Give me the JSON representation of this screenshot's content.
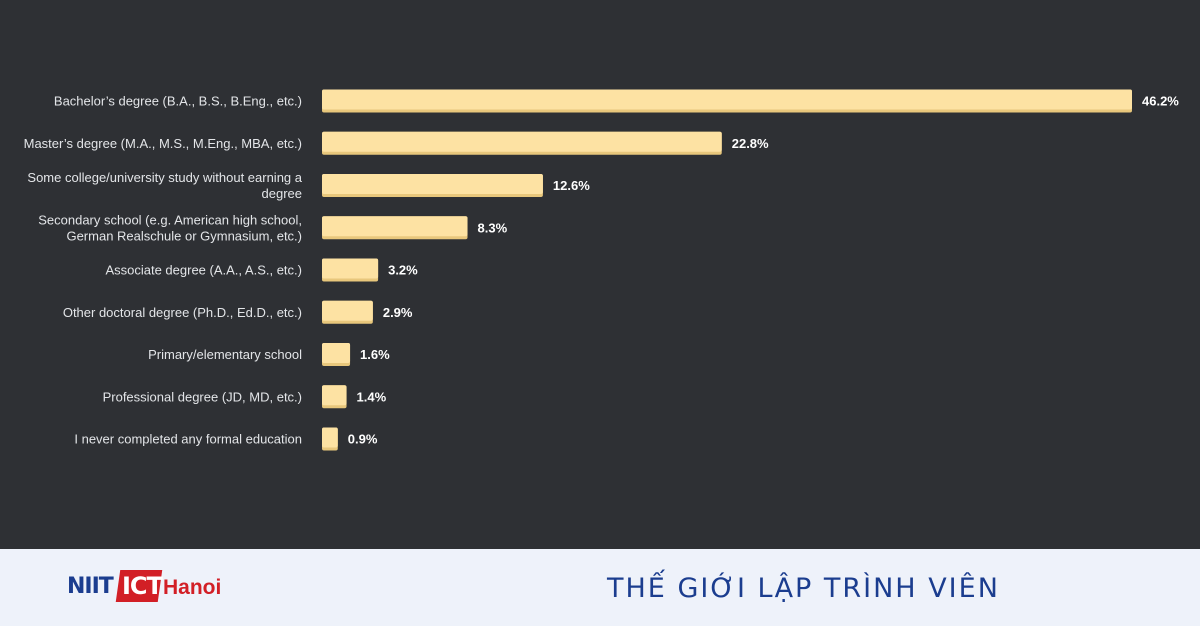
{
  "chart_data": {
    "type": "bar",
    "orientation": "horizontal",
    "categories": [
      [
        "Bachelor’s degree (B.A., B.S., B.Eng., etc.)"
      ],
      [
        "Master’s degree (M.A., M.S., M.Eng., MBA, etc.)"
      ],
      [
        "Some college/university study without earning a",
        "degree"
      ],
      [
        "Secondary school (e.g. American high school,",
        "German Realschule or Gymnasium, etc.)"
      ],
      [
        "Associate degree (A.A., A.S., etc.)"
      ],
      [
        "Other doctoral degree (Ph.D., Ed.D., etc.)"
      ],
      [
        "Primary/elementary school"
      ],
      [
        "Professional degree (JD, MD, etc.)"
      ],
      [
        "I never completed any formal education"
      ]
    ],
    "values": [
      46.2,
      22.8,
      12.6,
      8.3,
      3.2,
      2.9,
      1.6,
      1.4,
      0.9
    ],
    "value_labels": [
      "46.2%",
      "22.8%",
      "12.6%",
      "8.3%",
      "3.2%",
      "2.9%",
      "1.6%",
      "1.4%",
      "0.9%"
    ],
    "xlim": [
      0,
      46.2
    ],
    "grid": false,
    "colors": {
      "bar": "#fde2a3",
      "bar_shadow": "#e8c77c",
      "background": "#2e3034"
    }
  },
  "footer": {
    "logo": {
      "niit": "NIIT",
      "ict": "ICT",
      "hanoi": "Hanoi"
    },
    "tagline": "THẾ GIỚI LẬP TRÌNH VIÊN"
  }
}
